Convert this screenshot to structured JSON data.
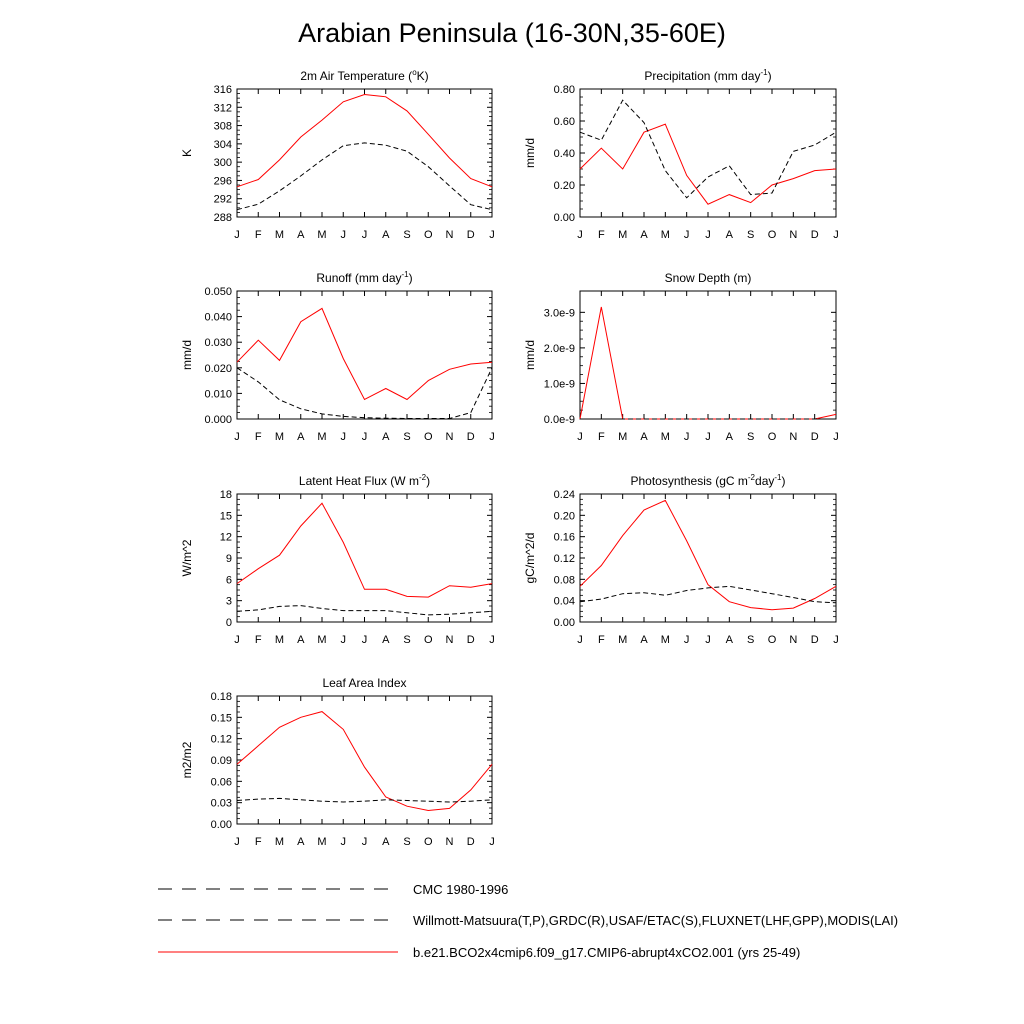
{
  "title": "Arabian Peninsula (16-30N,35-60E)",
  "months": [
    "J",
    "F",
    "M",
    "A",
    "M",
    "J",
    "J",
    "A",
    "S",
    "O",
    "N",
    "D",
    "J"
  ],
  "legend": [
    {
      "label": "CMC 1980-1996",
      "style": "dash",
      "color": "#000000"
    },
    {
      "label": "Willmott-Matsuura(T,P),GRDC(R),USAF/ETAC(S),FLUXNET(LHF,GPP),MODIS(LAI)",
      "style": "dash",
      "color": "#000000"
    },
    {
      "label": "b.e21.BCO2x4cmip6.f09_g17.CMIP6-abrupt4xCO2.001 (yrs 25-49)",
      "style": "solid",
      "color": "#ff0000"
    }
  ],
  "chart_data": [
    {
      "type": "line",
      "title": "2m Air Temperature (",
      "title_sup": "o",
      "title_suffix": "K)",
      "ylabel": "K",
      "ylim": [
        288,
        316
      ],
      "yticks": [
        "288",
        "292",
        "296",
        "300",
        "304",
        "308",
        "312",
        "316"
      ],
      "ytick_values": [
        288,
        292,
        296,
        300,
        304,
        308,
        312,
        316
      ],
      "series": [
        {
          "name": "model",
          "style": "solid",
          "color": "#ff0000",
          "values": [
            294.6,
            296.2,
            300.5,
            305.5,
            309.2,
            313.2,
            314.8,
            314.3,
            311.2,
            306.1,
            300.9,
            296.4,
            294.6
          ]
        },
        {
          "name": "obs",
          "style": "dash",
          "color": "#000000",
          "values": [
            289.6,
            290.8,
            293.7,
            297.0,
            300.5,
            303.6,
            304.2,
            303.7,
            302.4,
            299.0,
            294.8,
            290.7,
            289.6
          ]
        }
      ]
    },
    {
      "type": "line",
      "title": "Precipitation (mm day",
      "title_sup": "-1",
      "title_suffix": ")",
      "ylabel": "mm/d",
      "ylim": [
        0,
        0.8
      ],
      "yticks": [
        "0.00",
        "0.20",
        "0.40",
        "0.60",
        "0.80"
      ],
      "ytick_values": [
        0,
        0.2,
        0.4,
        0.6,
        0.8
      ],
      "series": [
        {
          "name": "model",
          "style": "solid",
          "color": "#ff0000",
          "values": [
            0.3,
            0.43,
            0.3,
            0.53,
            0.58,
            0.26,
            0.08,
            0.14,
            0.09,
            0.2,
            0.24,
            0.29,
            0.3
          ]
        },
        {
          "name": "obs",
          "style": "dash",
          "color": "#000000",
          "values": [
            0.53,
            0.48,
            0.73,
            0.59,
            0.29,
            0.12,
            0.25,
            0.32,
            0.14,
            0.15,
            0.41,
            0.45,
            0.53
          ]
        }
      ]
    },
    {
      "type": "line",
      "title": "Runoff (mm day",
      "title_sup": "-1",
      "title_suffix": ")",
      "ylabel": "mm/d",
      "ylim": [
        0,
        0.05
      ],
      "yticks": [
        "0.000",
        "0.010",
        "0.020",
        "0.030",
        "0.040",
        "0.050"
      ],
      "ytick_values": [
        0,
        0.01,
        0.02,
        0.03,
        0.04,
        0.05
      ],
      "series": [
        {
          "name": "model",
          "style": "solid",
          "color": "#ff0000",
          "values": [
            0.0222,
            0.0308,
            0.0229,
            0.038,
            0.0432,
            0.0236,
            0.0076,
            0.0119,
            0.0076,
            0.015,
            0.0194,
            0.0215,
            0.0222
          ]
        },
        {
          "name": "obs",
          "style": "dash",
          "color": "#000000",
          "values": [
            0.02,
            0.0145,
            0.0075,
            0.004,
            0.002,
            0.001,
            0.0005,
            0.0003,
            0.0002,
            0.0002,
            0.0002,
            0.0025,
            0.02
          ]
        }
      ]
    },
    {
      "type": "line",
      "title": "Snow Depth (m)",
      "title_sup": "",
      "title_suffix": "",
      "ylabel": "mm/d",
      "ylim": [
        0,
        3.6e-09
      ],
      "yticks": [
        "0.0e-9",
        "1.0e-9",
        "2.0e-9",
        "3.0e-9"
      ],
      "ytick_values": [
        0,
        1e-09,
        2e-09,
        3e-09
      ],
      "series": [
        {
          "name": "model",
          "style": "solid",
          "color": "#ff0000",
          "values": [
            0,
            3.15e-09,
            0,
            0,
            0,
            0,
            0,
            0,
            0,
            0,
            0,
            0,
            1.3e-10
          ]
        },
        {
          "name": "obs",
          "style": "dash",
          "color": "#000000",
          "values": [
            0,
            0,
            0,
            0,
            0,
            0,
            0,
            0,
            0,
            0,
            0,
            0,
            0
          ]
        }
      ]
    },
    {
      "type": "line",
      "title": "Latent Heat Flux (W m",
      "title_sup": "-2",
      "title_suffix": ")",
      "ylabel": "W/m^2",
      "ylim": [
        0,
        18
      ],
      "yticks": [
        "0",
        "3",
        "6",
        "9",
        "12",
        "15",
        "18"
      ],
      "ytick_values": [
        0,
        3,
        6,
        9,
        12,
        15,
        18
      ],
      "series": [
        {
          "name": "model",
          "style": "solid",
          "color": "#ff0000",
          "values": [
            5.4,
            7.5,
            9.4,
            13.5,
            16.7,
            11.2,
            4.6,
            4.6,
            3.6,
            3.5,
            5.1,
            4.9,
            5.4
          ]
        },
        {
          "name": "obs",
          "style": "dash",
          "color": "#000000",
          "values": [
            1.5,
            1.7,
            2.2,
            2.3,
            1.9,
            1.6,
            1.6,
            1.6,
            1.3,
            1.0,
            1.1,
            1.3,
            1.5
          ]
        }
      ]
    },
    {
      "type": "line",
      "title": "Photosynthesis (gC m",
      "title_sup": "-2",
      "title_suffix": "day",
      "title_sup2": "-1",
      "title_suffix2": ")",
      "ylabel": "gC/m^2/d",
      "ylim": [
        0,
        0.24
      ],
      "yticks": [
        "0.00",
        "0.04",
        "0.08",
        "0.12",
        "0.16",
        "0.20",
        "0.24"
      ],
      "ytick_values": [
        0,
        0.04,
        0.08,
        0.12,
        0.16,
        0.2,
        0.24
      ],
      "series": [
        {
          "name": "model",
          "style": "solid",
          "color": "#ff0000",
          "values": [
            0.067,
            0.106,
            0.162,
            0.21,
            0.228,
            0.152,
            0.07,
            0.038,
            0.027,
            0.023,
            0.026,
            0.044,
            0.067
          ]
        },
        {
          "name": "obs",
          "style": "dash",
          "color": "#000000",
          "values": [
            0.038,
            0.043,
            0.053,
            0.055,
            0.05,
            0.059,
            0.064,
            0.067,
            0.06,
            0.053,
            0.046,
            0.038,
            0.036
          ]
        }
      ]
    },
    {
      "type": "line",
      "title": "Leaf Area Index",
      "title_sup": "",
      "title_suffix": "",
      "ylabel": "m2/m2",
      "ylim": [
        0,
        0.18
      ],
      "yticks": [
        "0.00",
        "0.03",
        "0.06",
        "0.09",
        "0.12",
        "0.15",
        "0.18"
      ],
      "ytick_values": [
        0,
        0.03,
        0.06,
        0.09,
        0.12,
        0.15,
        0.18
      ],
      "series": [
        {
          "name": "model",
          "style": "solid",
          "color": "#ff0000",
          "values": [
            0.084,
            0.11,
            0.136,
            0.15,
            0.158,
            0.133,
            0.08,
            0.038,
            0.025,
            0.019,
            0.022,
            0.048,
            0.084
          ]
        },
        {
          "name": "obs",
          "style": "dash",
          "color": "#000000",
          "values": [
            0.033,
            0.035,
            0.036,
            0.034,
            0.032,
            0.031,
            0.032,
            0.034,
            0.033,
            0.032,
            0.031,
            0.032,
            0.034
          ]
        }
      ]
    }
  ]
}
